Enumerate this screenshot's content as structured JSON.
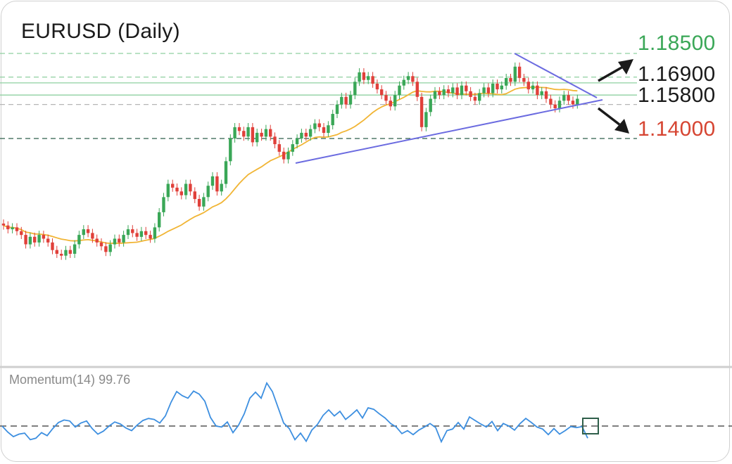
{
  "title": "EURUSD (Daily)",
  "levels": {
    "upper": {
      "label": "1.18500",
      "value": 1.185,
      "color": "#3aa757",
      "style": "dashed"
    },
    "mid_high": {
      "label": "1.16900",
      "value": 1.169,
      "color": "#1a1a1a",
      "style": "dashed"
    },
    "mid_low": {
      "label": "1.15800",
      "value": 1.158,
      "color": "#1a1a1a",
      "style": "dashed"
    },
    "lower": {
      "label": "1.14000",
      "value": 1.14,
      "color": "#d64532",
      "style": "dashed"
    }
  },
  "indicator": {
    "name": "Momentum(14)",
    "value": "99.76"
  },
  "colors": {
    "bull": "#3aa757",
    "bear": "#e0403a",
    "ma": "#f1b535",
    "trend": "#6b6be0",
    "momentum": "#3d8fe0",
    "up_level": "#8fd0a0",
    "down_level": "#2f5f4a"
  },
  "chart_data": [
    {
      "type": "candlestick",
      "title": "EURUSD (Daily)",
      "ylim": [
        1.05,
        1.19
      ],
      "candles": [
        [
          1.095,
          1.094
        ],
        [
          1.094,
          1.092
        ],
        [
          1.092,
          1.093
        ],
        [
          1.093,
          1.091
        ],
        [
          1.091,
          1.089
        ],
        [
          1.089,
          1.084
        ],
        [
          1.084,
          1.088
        ],
        [
          1.088,
          1.085
        ],
        [
          1.085,
          1.089
        ],
        [
          1.089,
          1.087
        ],
        [
          1.087,
          1.085
        ],
        [
          1.085,
          1.081
        ],
        [
          1.081,
          1.079
        ],
        [
          1.079,
          1.078
        ],
        [
          1.078,
          1.081
        ],
        [
          1.081,
          1.079
        ],
        [
          1.079,
          1.084
        ],
        [
          1.084,
          1.089
        ],
        [
          1.089,
          1.092
        ],
        [
          1.092,
          1.09
        ],
        [
          1.09,
          1.087
        ],
        [
          1.087,
          1.085
        ],
        [
          1.085,
          1.083
        ],
        [
          1.083,
          1.08
        ],
        [
          1.08,
          1.084
        ],
        [
          1.084,
          1.087
        ],
        [
          1.087,
          1.085
        ],
        [
          1.085,
          1.089
        ],
        [
          1.089,
          1.092
        ],
        [
          1.092,
          1.09
        ],
        [
          1.09,
          1.088
        ],
        [
          1.088,
          1.091
        ],
        [
          1.091,
          1.089
        ],
        [
          1.089,
          1.087
        ],
        [
          1.087,
          1.093
        ],
        [
          1.093,
          1.101
        ],
        [
          1.101,
          1.109
        ],
        [
          1.109,
          1.116
        ],
        [
          1.116,
          1.114
        ],
        [
          1.114,
          1.112
        ],
        [
          1.112,
          1.11
        ],
        [
          1.11,
          1.116
        ],
        [
          1.116,
          1.112
        ],
        [
          1.112,
          1.108
        ],
        [
          1.108,
          1.104
        ],
        [
          1.104,
          1.109
        ],
        [
          1.109,
          1.115
        ],
        [
          1.115,
          1.12
        ],
        [
          1.12,
          1.112
        ],
        [
          1.112,
          1.116
        ],
        [
          1.116,
          1.128
        ],
        [
          1.128,
          1.14
        ],
        [
          1.14,
          1.146
        ],
        [
          1.146,
          1.144
        ],
        [
          1.144,
          1.141
        ],
        [
          1.141,
          1.146
        ],
        [
          1.146,
          1.138
        ],
        [
          1.138,
          1.143
        ],
        [
          1.143,
          1.141
        ],
        [
          1.141,
          1.145
        ],
        [
          1.145,
          1.141
        ],
        [
          1.141,
          1.137
        ],
        [
          1.137,
          1.133
        ],
        [
          1.133,
          1.129
        ],
        [
          1.129,
          1.133
        ],
        [
          1.133,
          1.137
        ],
        [
          1.137,
          1.14
        ],
        [
          1.14,
          1.143
        ],
        [
          1.143,
          1.141
        ],
        [
          1.141,
          1.145
        ],
        [
          1.145,
          1.148
        ],
        [
          1.148,
          1.146
        ],
        [
          1.146,
          1.143
        ],
        [
          1.143,
          1.147
        ],
        [
          1.147,
          1.153
        ],
        [
          1.153,
          1.158
        ],
        [
          1.158,
          1.162
        ],
        [
          1.162,
          1.158
        ],
        [
          1.158,
          1.163
        ],
        [
          1.163,
          1.17
        ],
        [
          1.17,
          1.175
        ],
        [
          1.175,
          1.171
        ],
        [
          1.171,
          1.173
        ],
        [
          1.173,
          1.169
        ],
        [
          1.169,
          1.166
        ],
        [
          1.166,
          1.163
        ],
        [
          1.163,
          1.16
        ],
        [
          1.16,
          1.157
        ],
        [
          1.157,
          1.163
        ],
        [
          1.163,
          1.168
        ],
        [
          1.168,
          1.171
        ],
        [
          1.171,
          1.173
        ],
        [
          1.173,
          1.17
        ],
        [
          1.17,
          1.162
        ],
        [
          1.162,
          1.146
        ],
        [
          1.146,
          1.154
        ],
        [
          1.154,
          1.161
        ],
        [
          1.161,
          1.165
        ],
        [
          1.165,
          1.163
        ],
        [
          1.163,
          1.166
        ],
        [
          1.166,
          1.164
        ],
        [
          1.164,
          1.167
        ],
        [
          1.167,
          1.163
        ],
        [
          1.163,
          1.168
        ],
        [
          1.168,
          1.165
        ],
        [
          1.165,
          1.162
        ],
        [
          1.162,
          1.16
        ],
        [
          1.16,
          1.164
        ],
        [
          1.164,
          1.167
        ],
        [
          1.167,
          1.164
        ],
        [
          1.164,
          1.169
        ],
        [
          1.169,
          1.166
        ],
        [
          1.166,
          1.168
        ],
        [
          1.168,
          1.172
        ],
        [
          1.172,
          1.17
        ],
        [
          1.17,
          1.178
        ],
        [
          1.178,
          1.172
        ],
        [
          1.172,
          1.17
        ],
        [
          1.17,
          1.166
        ],
        [
          1.166,
          1.168
        ],
        [
          1.168,
          1.163
        ],
        [
          1.163,
          1.165
        ],
        [
          1.165,
          1.161
        ],
        [
          1.161,
          1.158
        ],
        [
          1.158,
          1.156
        ],
        [
          1.156,
          1.16
        ],
        [
          1.16,
          1.163
        ],
        [
          1.163,
          1.16
        ],
        [
          1.16,
          1.158
        ],
        [
          1.158,
          1.161
        ]
      ],
      "ma_period": 20
    },
    {
      "type": "line",
      "title": "Momentum(14) 99.76",
      "baseline": 100,
      "ylim": [
        98.6,
        101.6
      ],
      "values": [
        100.0,
        99.88,
        99.79,
        99.84,
        99.86,
        99.73,
        99.76,
        99.87,
        99.81,
        99.95,
        100.07,
        100.12,
        100.1,
        99.98,
        100.06,
        100.1,
        99.95,
        99.84,
        99.9,
        100.0,
        100.08,
        100.04,
        99.96,
        99.91,
        100.02,
        100.11,
        100.15,
        100.13,
        100.06,
        100.2,
        100.47,
        100.68,
        100.6,
        100.55,
        100.69,
        100.63,
        100.49,
        100.17,
        100.0,
        99.98,
        100.08,
        99.87,
        100.02,
        100.24,
        100.55,
        100.67,
        100.55,
        100.85,
        100.68,
        100.37,
        100.06,
        99.95,
        99.73,
        99.86,
        99.7,
        99.92,
        100.03,
        100.21,
        100.32,
        100.2,
        100.29,
        100.13,
        100.22,
        100.32,
        100.16,
        100.36,
        100.33,
        100.24,
        100.16,
        100.05,
        99.98,
        99.85,
        99.91,
        99.83,
        99.92,
        99.98,
        100.05,
        99.97,
        99.69,
        99.91,
        99.94,
        100.07,
        99.94,
        100.18,
        100.11,
        100.04,
        99.98,
        100.09,
        99.91,
        100.05,
        100.0,
        99.92,
        100.05,
        100.15,
        100.07,
        99.98,
        99.94,
        99.83,
        99.95,
        99.84,
        99.91,
        99.99,
        99.97,
        99.99,
        99.76
      ]
    }
  ]
}
